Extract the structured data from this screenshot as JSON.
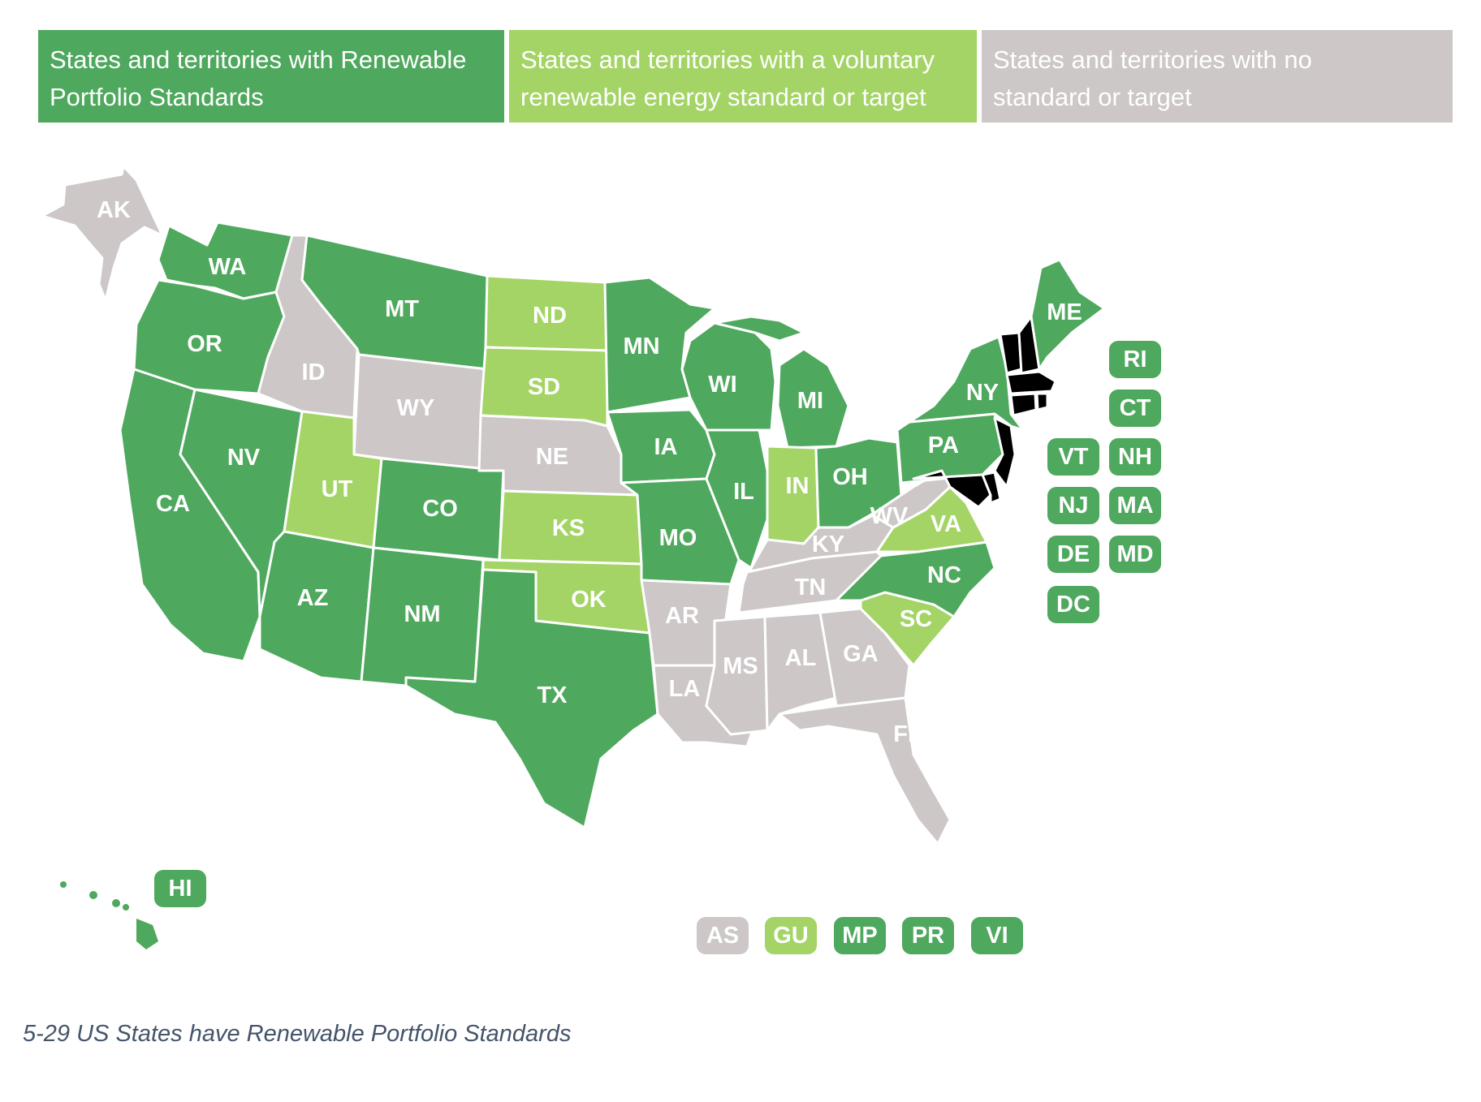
{
  "colors": {
    "rps": "#4ea85d",
    "voluntary": "#a3d465",
    "none": "#cdc7c7"
  },
  "legend": [
    {
      "status": "rps",
      "text": "States and territories with Renewable Portfolio Standards",
      "line1": "States and territories with Renewable",
      "line2": "Portfolio Standards"
    },
    {
      "status": "voluntary",
      "text": "States and territories with a voluntary renewable energy standard or target",
      "line1": "States and territories with a voluntary",
      "line2": "renewable energy standard or target"
    },
    {
      "status": "none",
      "text": "States and territories with no standard or target",
      "line1": "States and territories with no",
      "line2": "standard or target"
    }
  ],
  "states": [
    {
      "code": "AK",
      "status": "none"
    },
    {
      "code": "WA",
      "status": "rps"
    },
    {
      "code": "OR",
      "status": "rps"
    },
    {
      "code": "CA",
      "status": "rps"
    },
    {
      "code": "NV",
      "status": "rps"
    },
    {
      "code": "ID",
      "status": "none"
    },
    {
      "code": "MT",
      "status": "rps"
    },
    {
      "code": "WY",
      "status": "none"
    },
    {
      "code": "UT",
      "status": "voluntary"
    },
    {
      "code": "CO",
      "status": "rps"
    },
    {
      "code": "AZ",
      "status": "rps"
    },
    {
      "code": "NM",
      "status": "rps"
    },
    {
      "code": "ND",
      "status": "voluntary"
    },
    {
      "code": "SD",
      "status": "voluntary"
    },
    {
      "code": "NE",
      "status": "none"
    },
    {
      "code": "KS",
      "status": "voluntary"
    },
    {
      "code": "OK",
      "status": "voluntary"
    },
    {
      "code": "TX",
      "status": "rps"
    },
    {
      "code": "MN",
      "status": "rps"
    },
    {
      "code": "IA",
      "status": "rps"
    },
    {
      "code": "MO",
      "status": "rps"
    },
    {
      "code": "AR",
      "status": "none"
    },
    {
      "code": "LA",
      "status": "none"
    },
    {
      "code": "WI",
      "status": "rps"
    },
    {
      "code": "IL",
      "status": "rps"
    },
    {
      "code": "MI",
      "status": "rps"
    },
    {
      "code": "IN",
      "status": "voluntary"
    },
    {
      "code": "OH",
      "status": "rps"
    },
    {
      "code": "KY",
      "status": "none"
    },
    {
      "code": "TN",
      "status": "none"
    },
    {
      "code": "MS",
      "status": "none"
    },
    {
      "code": "AL",
      "status": "none"
    },
    {
      "code": "GA",
      "status": "none"
    },
    {
      "code": "FL",
      "status": "none"
    },
    {
      "code": "SC",
      "status": "voluntary"
    },
    {
      "code": "NC",
      "status": "rps"
    },
    {
      "code": "VA",
      "status": "voluntary"
    },
    {
      "code": "WV",
      "status": "none"
    },
    {
      "code": "PA",
      "status": "rps"
    },
    {
      "code": "NY",
      "status": "rps"
    },
    {
      "code": "ME",
      "status": "rps"
    },
    {
      "code": "HI",
      "status": "rps"
    }
  ],
  "northeast_chips": [
    {
      "code": "RI",
      "status": "rps"
    },
    {
      "code": "CT",
      "status": "rps"
    },
    {
      "code": "VT",
      "status": "rps"
    },
    {
      "code": "NH",
      "status": "rps"
    },
    {
      "code": "NJ",
      "status": "rps"
    },
    {
      "code": "MA",
      "status": "rps"
    },
    {
      "code": "DE",
      "status": "rps"
    },
    {
      "code": "MD",
      "status": "rps"
    },
    {
      "code": "DC",
      "status": "rps"
    }
  ],
  "territory_chips": [
    {
      "code": "AS",
      "status": "none"
    },
    {
      "code": "GU",
      "status": "voluntary"
    },
    {
      "code": "MP",
      "status": "rps"
    },
    {
      "code": "PR",
      "status": "rps"
    },
    {
      "code": "VI",
      "status": "rps"
    }
  ],
  "caption": "5-29 US States have Renewable Portfolio Standards"
}
